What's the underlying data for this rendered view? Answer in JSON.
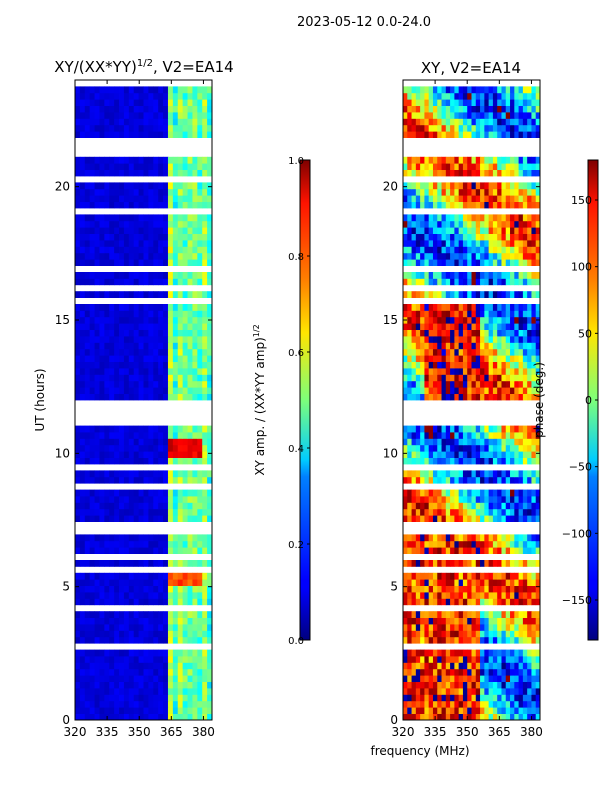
{
  "suptitle": "2023-05-12 0.0-24.0",
  "shared_xlabel": "frequency (MHz)",
  "chart_data": [
    {
      "type": "heatmap",
      "title_main": "XY/(XX*YY)",
      "title_sup": "1/2",
      "title_suffix": ", V2=EA14",
      "xlabel": "frequency (MHz)",
      "ylabel": "UT (hours)",
      "xlim": [
        320,
        384
      ],
      "ylim": [
        0,
        24
      ],
      "xticks": [
        320,
        335,
        350,
        365,
        380
      ],
      "yticks": [
        0,
        5,
        10,
        15,
        20
      ],
      "colorbar": {
        "label_main": "XY amp. / (XX*YY amp)",
        "label_sup": "1/2",
        "range": [
          0.0,
          1.0
        ],
        "ticks": [
          "0.0",
          "0.2",
          "0.4",
          "0.6",
          "0.8",
          "1.0"
        ],
        "tick_values": [
          0.0,
          0.2,
          0.4,
          0.6,
          0.8,
          1.0
        ]
      },
      "colormap": "jet",
      "bright_band_mhz": [
        364,
        382
      ],
      "flagged_hours": [
        [
          11.05,
          12.1
        ],
        [
          21.45,
          21.75
        ],
        [
          18.15,
          18.3
        ],
        [
          16.15,
          16.4
        ],
        [
          15.55,
          15.85
        ],
        [
          9.35,
          9.6
        ],
        [
          7.05,
          7.3
        ],
        [
          6.05,
          6.25
        ],
        [
          2.6,
          2.8
        ]
      ],
      "hot_spots": [
        {
          "ut": 10.1,
          "level": 0.95
        },
        {
          "ut": 5.3,
          "level": 0.85
        }
      ]
    },
    {
      "type": "heatmap",
      "title_main": "XY, V2=EA14",
      "xlabel": "frequency (MHz)",
      "ylabel": "",
      "xlim": [
        320,
        384
      ],
      "ylim": [
        0,
        24
      ],
      "xticks": [
        320,
        335,
        350,
        365,
        380
      ],
      "yticks": [
        0,
        5,
        10,
        15,
        20
      ],
      "colorbar": {
        "label_main": "phase (deg.)",
        "range": [
          -180,
          180
        ],
        "ticks": [
          "−150",
          "−100",
          "−50",
          "0",
          "50",
          "100",
          "150"
        ],
        "tick_values": [
          -150,
          -100,
          -50,
          0,
          50,
          100,
          150
        ]
      },
      "colormap": "jet",
      "flagged_hours": [
        [
          11.05,
          12.1
        ],
        [
          21.45,
          21.75
        ],
        [
          18.15,
          18.3
        ],
        [
          16.15,
          16.4
        ],
        [
          15.55,
          15.85
        ],
        [
          9.35,
          9.6
        ],
        [
          7.05,
          7.3
        ],
        [
          6.05,
          6.25
        ],
        [
          2.6,
          2.8
        ]
      ]
    }
  ]
}
